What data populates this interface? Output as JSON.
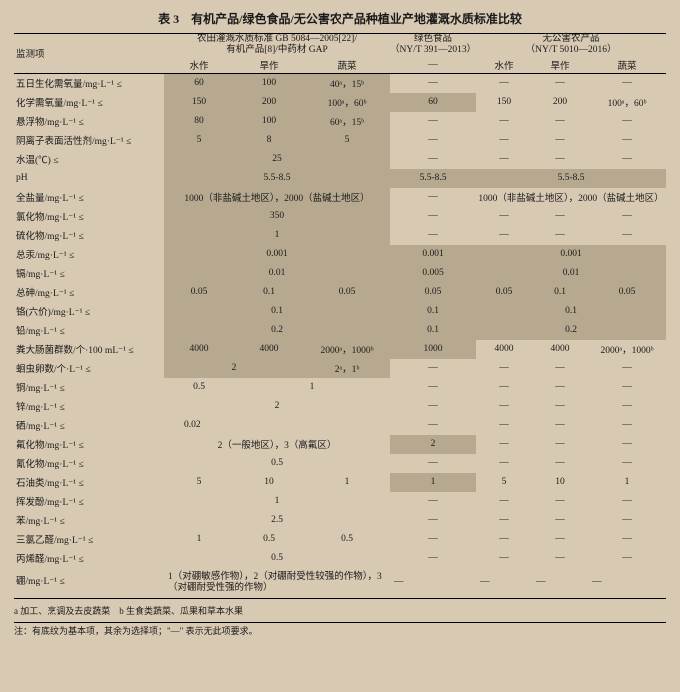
{
  "title": "表 3　有机产品/绿色食品/无公害农产品种植业产地灌溉水质标准比较",
  "colgroup_headers": {
    "monitor": "监测项",
    "g1_l1": "农田灌溉水质标准 GB 5084—2005[22]/",
    "g1_l2": "有机产品[8]/中药材 GAP",
    "g2_l1": "绿色食品",
    "g2_l2": "（NY/T 391—2013）",
    "g3_l1": "无公害农产品",
    "g3_l2": "（NY/T 5010—2016）"
  },
  "subheaders": {
    "c1": "水作",
    "c2": "旱作",
    "c3": "蔬菜",
    "c4": "—",
    "c5": "水作",
    "c6": "旱作",
    "c7": "蔬菜"
  },
  "rows": [
    {
      "label": "五日生化需氧量/mg·L⁻¹ ≤",
      "v": [
        "60",
        "100",
        "40ᵃ，15ᵇ",
        "—",
        "—",
        "—",
        "—"
      ],
      "s": [
        1,
        1,
        1,
        0,
        0,
        0,
        0
      ]
    },
    {
      "label": "化学需氧量/mg·L⁻¹ ≤",
      "v": [
        "150",
        "200",
        "100ᵃ，60ᵇ",
        "60",
        "150",
        "200",
        "100ᵃ，60ᵇ"
      ],
      "s": [
        1,
        1,
        1,
        1,
        0,
        0,
        0
      ]
    },
    {
      "label": "悬浮物/mg·L⁻¹ ≤",
      "v": [
        "80",
        "100",
        "60ᵃ，15ᵇ",
        "—",
        "—",
        "—",
        "—"
      ],
      "s": [
        1,
        1,
        1,
        0,
        0,
        0,
        0
      ]
    },
    {
      "label": "阴离子表面活性剂/mg·L⁻¹ ≤",
      "v": [
        "5",
        "8",
        "5",
        "—",
        "—",
        "—",
        "—"
      ],
      "s": [
        1,
        1,
        1,
        0,
        0,
        0,
        0
      ]
    },
    {
      "label": "水温(℃) ≤",
      "v": [
        "",
        "25",
        "",
        "—",
        "—",
        "—",
        "—"
      ],
      "s": [
        1,
        1,
        1,
        0,
        0,
        0,
        0
      ],
      "span1": 3
    },
    {
      "label": "pH",
      "v": [
        "",
        "5.5-8.5",
        "",
        "5.5-8.5",
        "",
        "5.5-8.5",
        ""
      ],
      "s": [
        1,
        1,
        1,
        1,
        1,
        1,
        1
      ],
      "span1": 3,
      "span5": 3
    },
    {
      "label": "全盐量/mg·L⁻¹ ≤",
      "v": [
        "",
        "1000（非盐碱土地区），2000（盐碱土地区）",
        "",
        "—",
        "",
        "1000（非盐碱土地区），2000（盐碱土地区）",
        ""
      ],
      "s": [
        1,
        1,
        1,
        0,
        0,
        0,
        0
      ],
      "span1": 3,
      "span5": 3
    },
    {
      "label": "氯化物/mg·L⁻¹ ≤",
      "v": [
        "",
        "350",
        "",
        "—",
        "—",
        "—",
        "—"
      ],
      "s": [
        1,
        1,
        1,
        0,
        0,
        0,
        0
      ],
      "span1": 3
    },
    {
      "label": "硫化物/mg·L⁻¹ ≤",
      "v": [
        "",
        "1",
        "",
        "—",
        "—",
        "—",
        "—"
      ],
      "s": [
        1,
        1,
        1,
        0,
        0,
        0,
        0
      ],
      "span1": 3
    },
    {
      "label": "总汞/mg·L⁻¹ ≤",
      "v": [
        "",
        "0.001",
        "",
        "0.001",
        "",
        "0.001",
        ""
      ],
      "s": [
        1,
        1,
        1,
        1,
        1,
        1,
        1
      ],
      "span1": 3,
      "span5": 3
    },
    {
      "label": "镉/mg·L⁻¹ ≤",
      "v": [
        "",
        "0.01",
        "",
        "0.005",
        "",
        "0.01",
        ""
      ],
      "s": [
        1,
        1,
        1,
        1,
        1,
        1,
        1
      ],
      "span1": 3,
      "span5": 3
    },
    {
      "label": "总砷/mg·L⁻¹ ≤",
      "v": [
        "0.05",
        "0.1",
        "0.05",
        "0.05",
        "0.05",
        "0.1",
        "0.05"
      ],
      "s": [
        1,
        1,
        1,
        1,
        1,
        1,
        1
      ]
    },
    {
      "label": "铬(六价)/mg·L⁻¹ ≤",
      "v": [
        "",
        "0.1",
        "",
        "0.1",
        "",
        "0.1",
        ""
      ],
      "s": [
        1,
        1,
        1,
        1,
        1,
        1,
        1
      ],
      "span1": 3,
      "span5": 3
    },
    {
      "label": "铅/mg·L⁻¹ ≤",
      "v": [
        "",
        "0.2",
        "",
        "0.1",
        "",
        "0.2",
        ""
      ],
      "s": [
        1,
        1,
        1,
        1,
        1,
        1,
        1
      ],
      "span1": 3,
      "span5": 3
    },
    {
      "label": "粪大肠菌群数/个·100 mL⁻¹ ≤",
      "v": [
        "4000",
        "4000",
        "2000ᵃ，1000ᵇ",
        "1000",
        "4000",
        "4000",
        "2000ᵃ，1000ᵇ"
      ],
      "s": [
        1,
        1,
        1,
        1,
        0,
        0,
        0
      ]
    },
    {
      "label": "蛔虫卵数/个·L⁻¹ ≤",
      "v": [
        "",
        "2",
        "2ᵃ，1ᵇ",
        "—",
        "—",
        "—",
        "—"
      ],
      "s": [
        1,
        1,
        1,
        0,
        0,
        0,
        0
      ],
      "span1": 2
    },
    {
      "label": "铜/mg·L⁻¹ ≤",
      "v": [
        "0.5",
        "",
        "1",
        "—",
        "—",
        "—",
        "—"
      ],
      "s": [
        0,
        0,
        0,
        0,
        0,
        0,
        0
      ],
      "span2": 2
    },
    {
      "label": "锌/mg·L⁻¹ ≤",
      "v": [
        "",
        "2",
        "",
        "—",
        "—",
        "—",
        "—"
      ],
      "s": [
        0,
        0,
        0,
        0,
        0,
        0,
        0
      ],
      "span1": 3
    },
    {
      "label": "硒/mg·L⁻¹ ≤",
      "v": [
        "0.02",
        "",
        "",
        "—",
        "—",
        "—",
        "—"
      ],
      "s": [
        0,
        0,
        0,
        0,
        0,
        0,
        0
      ],
      "span1": 3,
      "al": 1
    },
    {
      "label": "氟化物/mg·L⁻¹ ≤",
      "v": [
        "",
        "2（一般地区），3（高氟区）",
        "",
        "2",
        "—",
        "—",
        "—"
      ],
      "s": [
        0,
        0,
        0,
        1,
        0,
        0,
        0
      ],
      "span1": 3
    },
    {
      "label": "氰化物/mg·L⁻¹ ≤",
      "v": [
        "",
        "0.5",
        "",
        "—",
        "—",
        "—",
        "—"
      ],
      "s": [
        0,
        0,
        0,
        0,
        0,
        0,
        0
      ],
      "span1": 3
    },
    {
      "label": "石油类/mg·L⁻¹ ≤",
      "v": [
        "5",
        "10",
        "1",
        "1",
        "5",
        "10",
        "1"
      ],
      "s": [
        0,
        0,
        0,
        1,
        0,
        0,
        0
      ]
    },
    {
      "label": "挥发酚/mg·L⁻¹ ≤",
      "v": [
        "",
        "1",
        "",
        "—",
        "—",
        "—",
        "—"
      ],
      "s": [
        0,
        0,
        0,
        0,
        0,
        0,
        0
      ],
      "span1": 3
    },
    {
      "label": "苯/mg·L⁻¹ ≤",
      "v": [
        "",
        "2.5",
        "",
        "—",
        "—",
        "—",
        "—"
      ],
      "s": [
        0,
        0,
        0,
        0,
        0,
        0,
        0
      ],
      "span1": 3
    },
    {
      "label": "三氯乙醛/mg·L⁻¹ ≤",
      "v": [
        "1",
        "0.5",
        "0.5",
        "—",
        "—",
        "—",
        "—"
      ],
      "s": [
        0,
        0,
        0,
        0,
        0,
        0,
        0
      ]
    },
    {
      "label": "丙烯醛/mg·L⁻¹ ≤",
      "v": [
        "",
        "0.5",
        "",
        "—",
        "—",
        "—",
        "—"
      ],
      "s": [
        0,
        0,
        0,
        0,
        0,
        0,
        0
      ],
      "span1": 3
    },
    {
      "label": "硼/mg·L⁻¹ ≤",
      "v": [
        "",
        "1（对硼敏感作物），2（对硼耐受性较强的作物），3（对硼耐受性强的作物）",
        "",
        "—",
        "—",
        "—",
        "—"
      ],
      "s": [
        0,
        0,
        0,
        0,
        0,
        0,
        0
      ],
      "span1": 3,
      "tall": 1
    }
  ],
  "footnote_a": "a 加工、烹调及去皮蔬菜　b 生食类蔬菜、瓜果和草本水果",
  "footnote_b": "注：有底纹为基本项，其余为选择项；\"—\" 表示无此项要求。"
}
